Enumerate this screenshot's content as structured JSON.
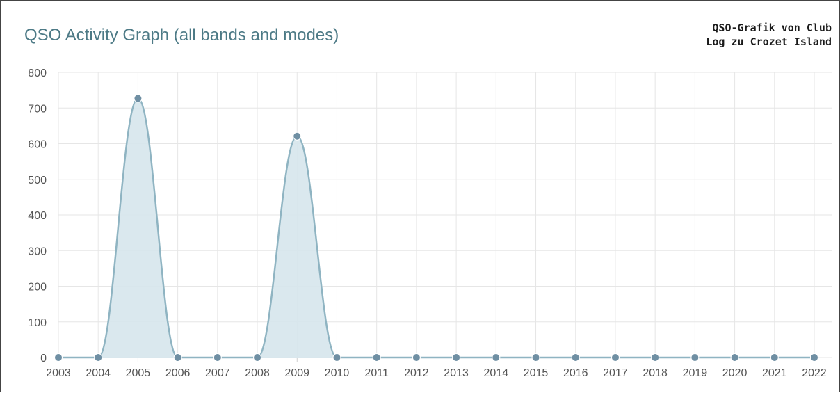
{
  "title": "QSO Activity Graph (all bands and modes)",
  "caption": {
    "line1": "QSO-Grafik von Club",
    "line2": "Log zu Crozet Island"
  },
  "colors": {
    "title": "#4d7a86",
    "line": "#8fb4c2",
    "fill": "#d6e6ec",
    "point": "#6f8fa3",
    "grid": "#e6e6e6"
  },
  "chart_data": {
    "type": "area",
    "title": "QSO Activity Graph (all bands and modes)",
    "xlabel": "",
    "ylabel": "",
    "categories": [
      "2003",
      "2004",
      "2005",
      "2006",
      "2007",
      "2008",
      "2009",
      "2010",
      "2011",
      "2012",
      "2013",
      "2014",
      "2015",
      "2016",
      "2017",
      "2018",
      "2019",
      "2020",
      "2021",
      "2022"
    ],
    "values": [
      0,
      0,
      727,
      0,
      0,
      0,
      621,
      0,
      0,
      0,
      0,
      0,
      0,
      0,
      0,
      0,
      0,
      0,
      0,
      0
    ],
    "ylim": [
      0,
      800
    ],
    "yticks": [
      0,
      100,
      200,
      300,
      400,
      500,
      600,
      700,
      800
    ],
    "grid": true,
    "legend": "none"
  }
}
